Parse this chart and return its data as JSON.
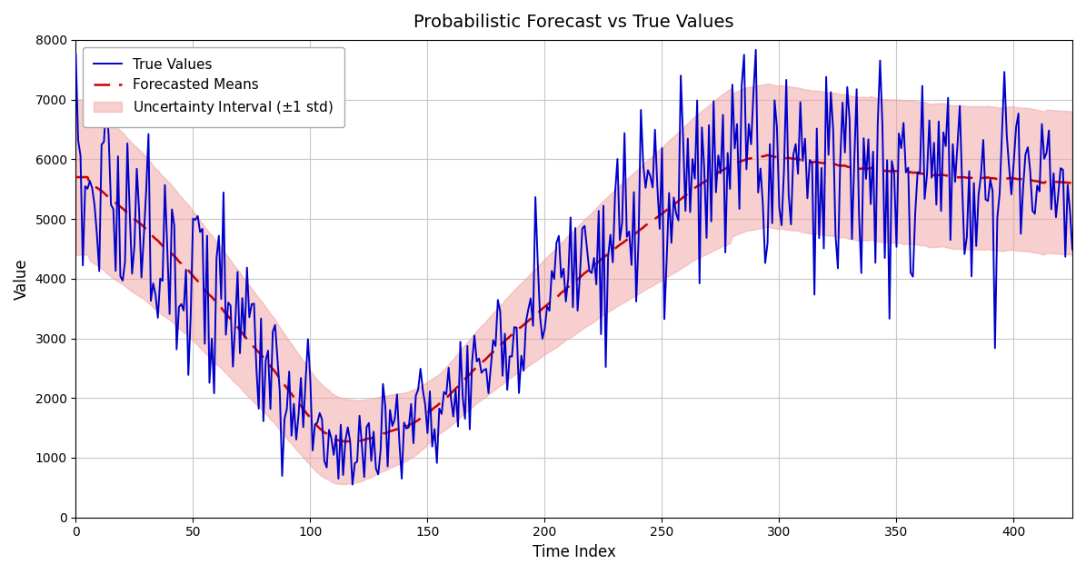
{
  "title": "Probabilistic Forecast vs True Values",
  "xlabel": "Time Index",
  "ylabel": "Value",
  "ylim": [
    0,
    8000
  ],
  "xlim": [
    0,
    425
  ],
  "n_points": 426,
  "true_values_color": "#0000cc",
  "forecast_color": "#cc0000",
  "uncertainty_color": "#f0a0a0",
  "uncertainty_alpha": 0.5,
  "true_linewidth": 1.4,
  "forecast_linewidth": 1.8,
  "legend_loc": "upper left",
  "grid": true,
  "background_color": "#ffffff",
  "seed": 17
}
